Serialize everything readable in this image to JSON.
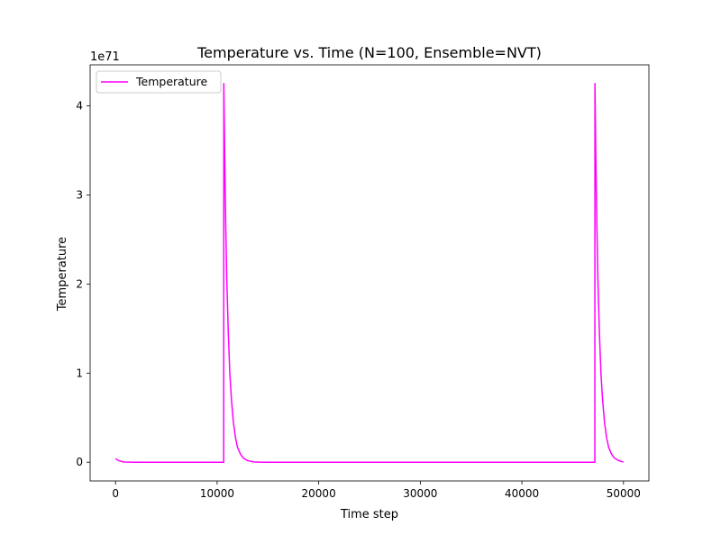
{
  "chart_data": {
    "type": "line",
    "title": "Temperature vs. Time (N=100, Ensemble=NVT)",
    "xlabel": "Time step",
    "ylabel": "Temperature",
    "y_offset_label": "1e71",
    "y_scale_multiplier": 1e+71,
    "xlim": [
      -2500,
      52500
    ],
    "ylim": [
      -0.21,
      4.46
    ],
    "x_ticks": [
      0,
      10000,
      20000,
      30000,
      40000,
      50000
    ],
    "y_ticks": [
      0,
      1,
      2,
      3,
      4
    ],
    "legend": {
      "position": "upper-left",
      "entries": [
        "Temperature"
      ]
    },
    "grid": false,
    "series": [
      {
        "name": "Temperature",
        "color": "#ff00ff",
        "x": [
          0,
          200,
          400,
          600,
          800,
          1000,
          1500,
          2000,
          10650,
          10660,
          10750,
          10850,
          10950,
          11100,
          11250,
          11400,
          11600,
          11800,
          12000,
          12300,
          12600,
          13000,
          13600,
          14500,
          47180,
          47190,
          47280,
          47380,
          47480,
          47630,
          47780,
          47930,
          48130,
          48330,
          48530,
          48830,
          49130,
          49500,
          49800,
          50000
        ],
        "values": [
          0.04,
          0.025,
          0.015,
          0.008,
          0.004,
          0.002,
          0.0005,
          0.0,
          0.0,
          4.25,
          3.4,
          2.65,
          2.05,
          1.45,
          1.0,
          0.72,
          0.45,
          0.28,
          0.17,
          0.09,
          0.045,
          0.018,
          0.004,
          0.0,
          0.0,
          4.25,
          3.4,
          2.65,
          2.05,
          1.45,
          1.0,
          0.72,
          0.45,
          0.28,
          0.17,
          0.09,
          0.045,
          0.02,
          0.008,
          0.004
        ]
      }
    ]
  }
}
